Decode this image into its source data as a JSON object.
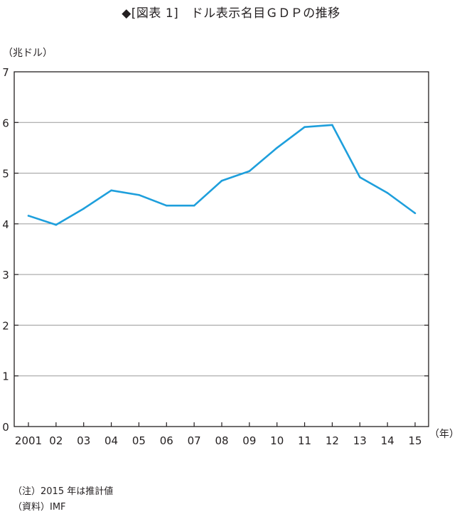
{
  "title": "◆[図表 1]　ドル表示名目ＧＤＰの推移",
  "ylabel": "（兆ドル）",
  "xunit": "（年）",
  "notes": {
    "note1": "（注）2015 年は推計値",
    "note2": "（資料）IMF"
  },
  "chart_data": {
    "type": "line",
    "title": "◆[図表 1]　ドル表示名目ＧＤＰの推移",
    "xlabel": "（年）",
    "ylabel": "（兆ドル）",
    "categories": [
      "2001",
      "02",
      "03",
      "04",
      "05",
      "06",
      "07",
      "08",
      "09",
      "10",
      "11",
      "12",
      "13",
      "14",
      "15"
    ],
    "series": [
      {
        "values": [
          4.16,
          3.98,
          4.3,
          4.66,
          4.57,
          4.36,
          4.36,
          4.85,
          5.04,
          5.5,
          5.91,
          5.95,
          4.92,
          4.61,
          4.21
        ]
      }
    ],
    "ylim": [
      0,
      7
    ],
    "yticks": [
      "0",
      "1",
      "2",
      "3",
      "4",
      "5",
      "6",
      "7"
    ],
    "grid": true,
    "line_color": "#1e9fdc"
  }
}
